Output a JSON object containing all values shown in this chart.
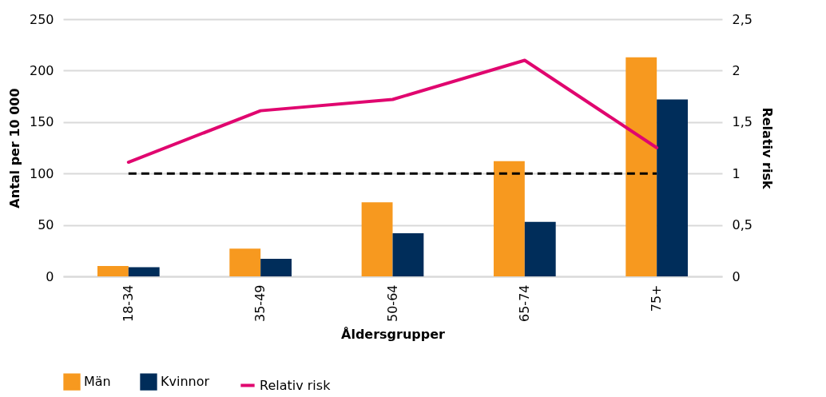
{
  "chart_data": {
    "type": "bar",
    "xlabel": "Åldersgrupper",
    "ylabel": "Antal per 10 000",
    "y2label": "Relativ risk",
    "categories": [
      "18-34",
      "35-49",
      "50-64",
      "65-74",
      "75+"
    ],
    "series": [
      {
        "name": "Män",
        "color": "#f7991f",
        "values": [
          10,
          27,
          72,
          112,
          213
        ]
      },
      {
        "name": "Kvinnor",
        "color": "#002d5a",
        "values": [
          9,
          17,
          42,
          53,
          172
        ]
      },
      {
        "name": "Relativ risk",
        "type": "line",
        "axis": "y2",
        "color": "#e0066f",
        "values": [
          1.11,
          1.61,
          1.72,
          2.1,
          1.25
        ]
      }
    ],
    "ylim": [
      0,
      250
    ],
    "yticks": [
      0,
      50,
      100,
      150,
      200,
      250
    ],
    "y2lim": [
      0,
      2.5
    ],
    "y2ticks": [
      0,
      {
        "value": 0.5,
        "label": "0,5"
      },
      1,
      {
        "value": 1.5,
        "label": "1,5"
      },
      2,
      {
        "value": 2.5,
        "label": "2,5"
      }
    ],
    "ref_lines": [
      {
        "axis": "y2",
        "value": 1,
        "color": "#000000",
        "line_style": "dashed"
      }
    ],
    "grid": "y",
    "legend": "bottom",
    "marker": "none",
    "line_style": "solid"
  }
}
